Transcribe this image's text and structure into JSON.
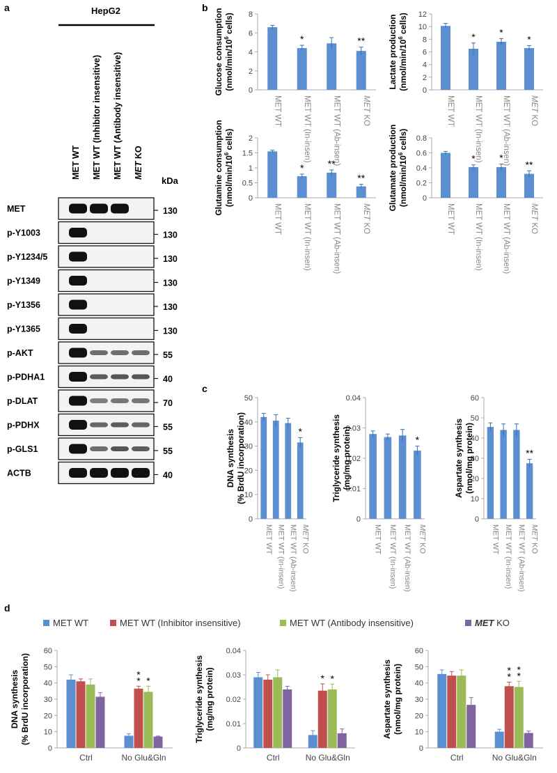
{
  "panel_labels": {
    "a": "a",
    "b": "b",
    "c": "c",
    "d": "d"
  },
  "blot": {
    "cell_line": "HepG2",
    "lanes": [
      {
        "text": "MET WT",
        "italic": false
      },
      {
        "pre": "MET WT (Inhibitor insensitive)",
        "text": "MET WT (Inhibitor insensitive)",
        "italic": false
      },
      {
        "text": "MET WT (Antibody insensitive)",
        "italic": false
      },
      {
        "italic_part": "MET",
        "rest": " KO"
      }
    ],
    "kda_header": "kDa",
    "rows": [
      {
        "label": "MET",
        "kda": "130",
        "bands": [
          1.0,
          1.0,
          1.0,
          0.0
        ]
      },
      {
        "label": "p-Y1003",
        "kda": "130",
        "bands": [
          1.0,
          0,
          0,
          0
        ]
      },
      {
        "label": "p-Y1234/5",
        "kda": "130",
        "bands": [
          1.0,
          0,
          0,
          0
        ]
      },
      {
        "label": "p-Y1349",
        "kda": "130",
        "bands": [
          1.0,
          0,
          0,
          0
        ]
      },
      {
        "label": "p-Y1356",
        "kda": "130",
        "bands": [
          1.0,
          0,
          0,
          0
        ]
      },
      {
        "label": "p-Y1365",
        "kda": "130",
        "bands": [
          1.0,
          0,
          0,
          0
        ]
      },
      {
        "label": "p-AKT",
        "kda": "55",
        "bands": [
          1.0,
          0.45,
          0.45,
          0.45
        ]
      },
      {
        "label": "p-PDHA1",
        "kda": "40",
        "bands": [
          1.0,
          0.55,
          0.6,
          0.6
        ]
      },
      {
        "label": "p-DLAT",
        "kda": "70",
        "bands": [
          1.0,
          0.35,
          0.4,
          0.4
        ]
      },
      {
        "label": "p-PDHX",
        "kda": "55",
        "bands": [
          1.0,
          0.5,
          0.55,
          0.5
        ]
      },
      {
        "label": "p-GLS1",
        "kda": "55",
        "bands": [
          1.0,
          0.45,
          0.6,
          0.55
        ]
      },
      {
        "label": "ACTB",
        "kda": "40",
        "bands": [
          1.0,
          1.0,
          1.0,
          1.0
        ]
      }
    ]
  },
  "colors": {
    "bar_blue": "#5b8fd1",
    "bar_red": "#c0504d",
    "bar_green": "#9bbb59",
    "bar_purple": "#8064a2",
    "tick_gray": "#888888"
  },
  "legend_d": [
    {
      "text": "MET WT",
      "color": "#5b8fd1"
    },
    {
      "text": "MET WT (Inhibitor insensitive)",
      "color": "#c0504d"
    },
    {
      "text": "MET WT (Antibody insensitive)",
      "color": "#9bbb59"
    },
    {
      "italic_part": "MET",
      "rest": " KO",
      "color": "#8064a2"
    }
  ],
  "chart_data": [
    {
      "panel": "b",
      "type": "bar",
      "ylabel_l1": "Glucose consumption",
      "ylabel_l2": "(nmol/min/10",
      "ylabel_sup": "6",
      "ylabel_l2_end": " cells)",
      "categories": [
        "MET WT",
        "MET WT (In-insen)",
        "MET WT (Ab-insen)",
        "MET KO"
      ],
      "values": [
        6.6,
        4.4,
        4.9,
        4.1
      ],
      "errors": [
        0.2,
        0.3,
        0.6,
        0.4
      ],
      "stars": [
        "",
        "*",
        "",
        "**"
      ],
      "ylim": [
        0,
        8
      ],
      "yticks": [
        "0",
        "2",
        "4",
        "6",
        "8"
      ]
    },
    {
      "panel": "b",
      "type": "bar",
      "ylabel_l1": "Lactate production",
      "ylabel_l2": "(nmol/min/10",
      "ylabel_sup": "6",
      "ylabel_l2_end": " cells)",
      "categories": [
        "MET WT",
        "MET WT (In-insen)",
        "MET WT (Ab-insen)",
        "MET KO"
      ],
      "values": [
        10.1,
        6.5,
        7.6,
        6.6
      ],
      "errors": [
        0.4,
        0.9,
        0.5,
        0.4
      ],
      "stars": [
        "",
        "*",
        "*",
        "*"
      ],
      "ylim": [
        0,
        12
      ],
      "yticks": [
        "0",
        "2",
        "4",
        "6",
        "8",
        "10",
        "12"
      ]
    },
    {
      "panel": "b",
      "type": "bar",
      "ylabel_l1": "Glutamine consumption",
      "ylabel_l2": "(nmol/min/10",
      "ylabel_sup": "6",
      "ylabel_l2_end": " cells)",
      "categories": [
        "MET WT",
        "MET WT (In-insen)",
        "MET WT (Ab-insen)",
        "MET KO"
      ],
      "values": [
        1.55,
        0.72,
        0.84,
        0.38
      ],
      "errors": [
        0.04,
        0.07,
        0.09,
        0.07
      ],
      "stars": [
        "",
        "*",
        "**",
        "**"
      ],
      "ylim": [
        0,
        2
      ],
      "yticks": [
        "0",
        "0.5",
        "1",
        "1.5",
        "2"
      ]
    },
    {
      "panel": "b",
      "type": "bar",
      "ylabel_l1": "Glutamate production",
      "ylabel_l2": "(nmol/min/10",
      "ylabel_sup": "6",
      "ylabel_l2_end": " cells)",
      "categories": [
        "MET WT",
        "MET WT (In-insen)",
        "MET WT (Ab-insen)",
        "MET KO"
      ],
      "values": [
        0.6,
        0.41,
        0.41,
        0.32
      ],
      "errors": [
        0.02,
        0.03,
        0.04,
        0.04
      ],
      "stars": [
        "",
        "*",
        "*",
        "**"
      ],
      "ylim": [
        0,
        0.8
      ],
      "yticks": [
        "0",
        "0.2",
        "0.4",
        "0.6",
        "0.8"
      ]
    },
    {
      "panel": "c",
      "type": "bar",
      "ylabel_l1": "DNA synthesis",
      "ylabel_l2": "(% BrdU incorporation)",
      "categories": [
        "MET WT",
        "MET WT (In-insen)",
        "MET WT (Ab-insen)",
        "MET KO"
      ],
      "values": [
        42,
        40.5,
        39.5,
        31.5
      ],
      "errors": [
        1.5,
        2.5,
        2.0,
        2.0
      ],
      "stars": [
        "",
        "",
        "",
        "*"
      ],
      "ylim": [
        0,
        50
      ],
      "yticks": [
        "0",
        "10",
        "20",
        "30",
        "40",
        "50"
      ]
    },
    {
      "panel": "c",
      "type": "bar",
      "ylabel_l1": "Triglyceride synthesis",
      "ylabel_l2": "(mg/mg protein)",
      "categories": [
        "MET WT",
        "MET WT (In-insen)",
        "MET WT (Ab-insen)",
        "MET KO"
      ],
      "values": [
        0.028,
        0.027,
        0.0275,
        0.0225
      ],
      "errors": [
        0.001,
        0.001,
        0.002,
        0.0015
      ],
      "stars": [
        "",
        "",
        "",
        "*"
      ],
      "ylim": [
        0,
        0.04
      ],
      "yticks": [
        "0",
        "0.01",
        "0.02",
        "0.03",
        "0.04"
      ]
    },
    {
      "panel": "c",
      "type": "bar",
      "ylabel_l1": "Aspartate synthesis",
      "ylabel_l2": "(nmol/mg protein)",
      "categories": [
        "MET WT",
        "MET WT (In-insen)",
        "MET WT (Ab-insen)",
        "MET KO"
      ],
      "values": [
        45.5,
        44,
        44,
        27.5
      ],
      "errors": [
        2.0,
        3.0,
        3.0,
        2.0
      ],
      "stars": [
        "",
        "",
        "",
        "**"
      ],
      "ylim": [
        0,
        60
      ],
      "yticks": [
        "0",
        "10",
        "20",
        "30",
        "40",
        "50",
        "60"
      ]
    },
    {
      "panel": "d",
      "type": "bar",
      "ylabel_l1": "DNA synthesis",
      "ylabel_l2": "(% BrdU incorporation)",
      "categories": [
        "Ctrl",
        "No Glu&Gln"
      ],
      "series": [
        {
          "values": [
            42,
            7.5
          ],
          "errors": [
            3.0,
            1.2
          ],
          "stars": [
            "",
            ""
          ]
        },
        {
          "values": [
            41,
            36.5
          ],
          "errors": [
            1.5,
            1.5
          ],
          "stars": [
            "",
            "**"
          ]
        },
        {
          "values": [
            39,
            34.5
          ],
          "errors": [
            3.5,
            3.5
          ],
          "stars": [
            "",
            "*"
          ]
        },
        {
          "values": [
            31.5,
            7
          ],
          "errors": [
            2.5,
            0.3
          ],
          "stars": [
            "",
            ""
          ]
        }
      ],
      "ylim": [
        0,
        60
      ],
      "yticks": [
        "0",
        "10",
        "20",
        "30",
        "40",
        "50",
        "60"
      ]
    },
    {
      "panel": "d",
      "type": "bar",
      "ylabel_l1": "Triglyceride synthesis",
      "ylabel_l2": "(mg/mg protein)",
      "categories": [
        "Ctrl",
        "No Glu&Gln"
      ],
      "series": [
        {
          "values": [
            0.029,
            0.0053
          ],
          "errors": [
            0.002,
            0.0018
          ],
          "stars": [
            "",
            ""
          ]
        },
        {
          "values": [
            0.028,
            0.0235
          ],
          "errors": [
            0.002,
            0.0028
          ],
          "stars": [
            "",
            "*"
          ]
        },
        {
          "values": [
            0.029,
            0.024
          ],
          "errors": [
            0.003,
            0.0022
          ],
          "stars": [
            "",
            "*"
          ]
        },
        {
          "values": [
            0.024,
            0.006
          ],
          "errors": [
            0.0013,
            0.0018
          ],
          "stars": [
            "",
            ""
          ]
        }
      ],
      "ylim": [
        0,
        0.04
      ],
      "yticks": [
        "0",
        "0.01",
        "0.02",
        "0.03",
        "0.04"
      ]
    },
    {
      "panel": "d",
      "type": "bar",
      "ylabel_l1": "Aspartate synthesis",
      "ylabel_l2": "(nmol/mg protein)",
      "categories": [
        "Ctrl",
        "No Glu&Gln"
      ],
      "series": [
        {
          "values": [
            45.5,
            10
          ],
          "errors": [
            2.5,
            1.5
          ],
          "stars": [
            "",
            ""
          ]
        },
        {
          "values": [
            44.5,
            38
          ],
          "errors": [
            2.5,
            2.5
          ],
          "stars": [
            "",
            "**"
          ]
        },
        {
          "values": [
            44.5,
            37.5
          ],
          "errors": [
            3.5,
            3.5
          ],
          "stars": [
            "",
            "**"
          ]
        },
        {
          "values": [
            26.5,
            9.2
          ],
          "errors": [
            4.5,
            1.2
          ],
          "stars": [
            "",
            ""
          ]
        }
      ],
      "ylim": [
        0,
        60
      ],
      "yticks": [
        "0",
        "10",
        "20",
        "30",
        "40",
        "50",
        "60"
      ]
    }
  ]
}
